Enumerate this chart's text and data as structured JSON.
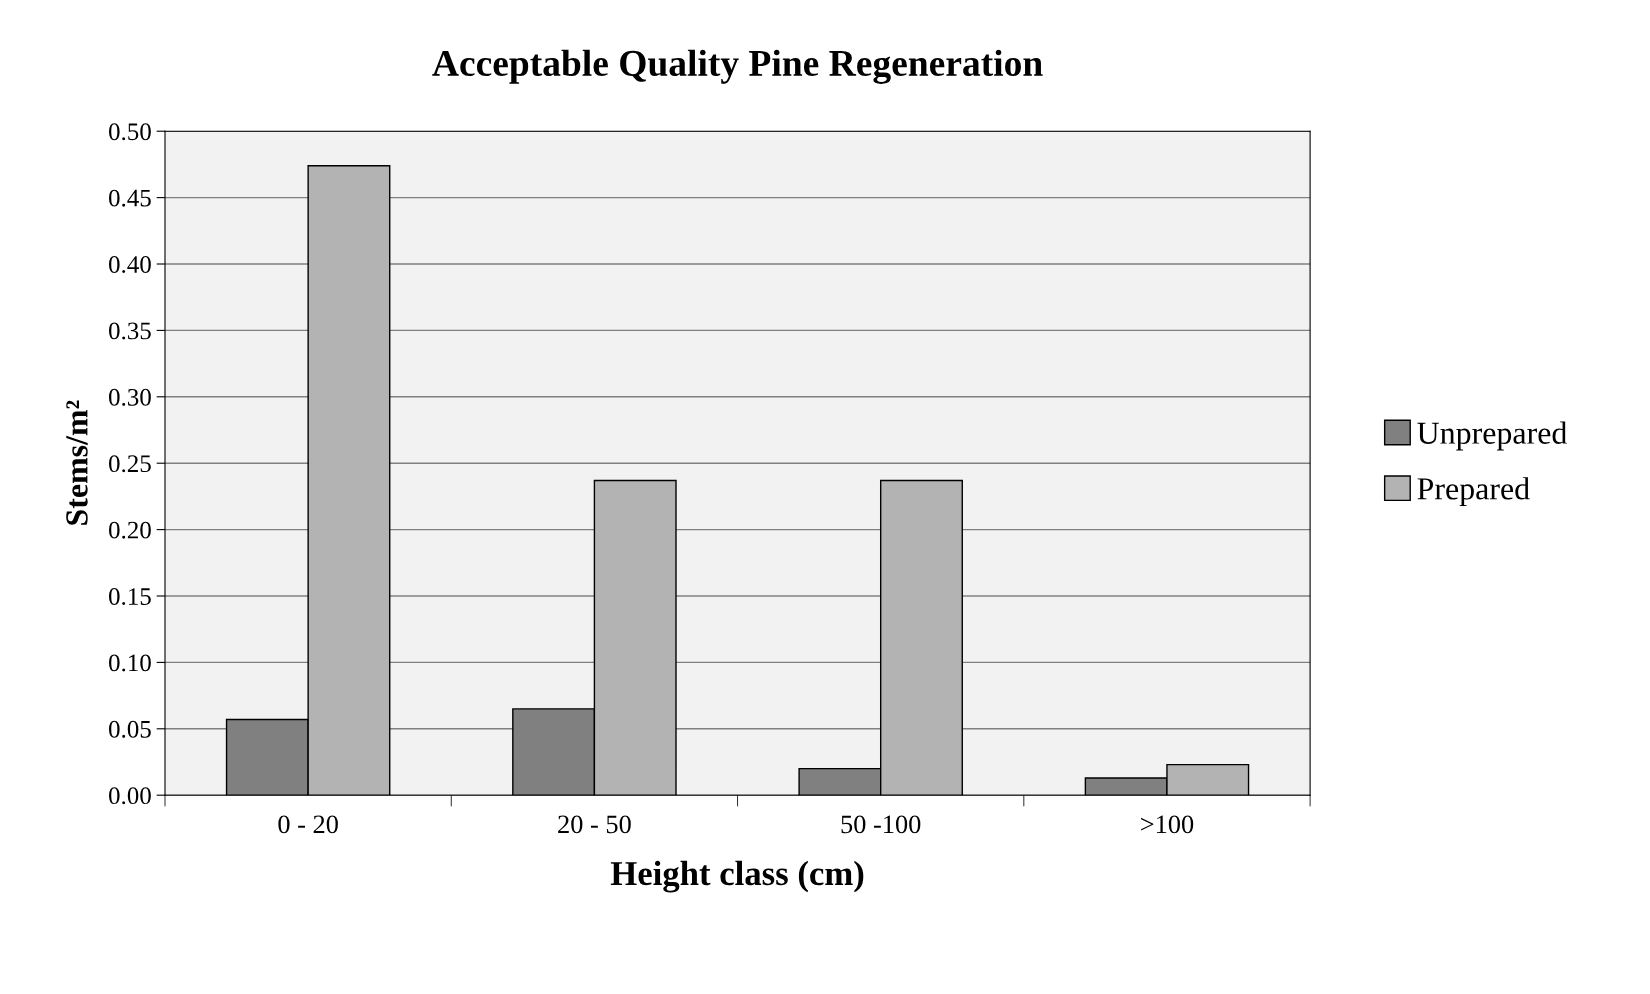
{
  "chart_data": {
    "type": "bar",
    "title": "Acceptable Quality Pine Regeneration",
    "xlabel": "Height class (cm)",
    "ylabel": "Stems/m²",
    "categories": [
      "0 - 20",
      "20 - 50",
      "50 -100",
      ">100"
    ],
    "series": [
      {
        "name": "Unprepared",
        "color": "#808080",
        "values": [
          0.057,
          0.065,
          0.02,
          0.013
        ]
      },
      {
        "name": "Prepared",
        "color": "#b3b3b3",
        "values": [
          0.474,
          0.237,
          0.237,
          0.023
        ]
      }
    ],
    "ylim": [
      0,
      0.5
    ],
    "yticks": [
      {
        "value": 0,
        "label": "0.00"
      },
      {
        "value": 0.05,
        "label": "0.05"
      },
      {
        "value": 0.1,
        "label": "0.10"
      },
      {
        "value": 0.15,
        "label": "0.15"
      },
      {
        "value": 0.2,
        "label": "0.20"
      },
      {
        "value": 0.25,
        "label": "0.25"
      },
      {
        "value": 0.3,
        "label": "0.30"
      },
      {
        "value": 0.35,
        "label": "0.35"
      },
      {
        "value": 0.4,
        "label": "0.40"
      },
      {
        "value": 0.45,
        "label": "0.45"
      },
      {
        "value": 0.5,
        "label": "0.50"
      }
    ],
    "grid": "y",
    "legend": "right"
  }
}
